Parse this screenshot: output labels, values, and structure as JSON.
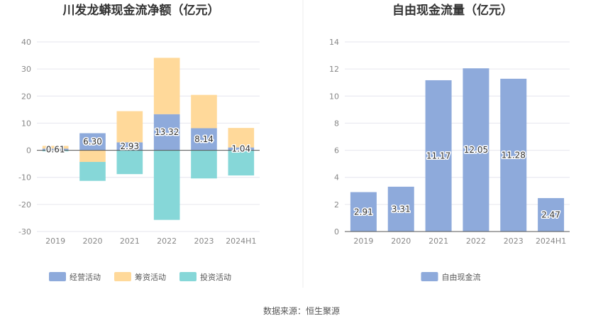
{
  "chart_data": [
    {
      "type": "bar",
      "stacked": true,
      "title": "川发龙蟒现金流净额（亿元）",
      "categories": [
        "2019",
        "2020",
        "2021",
        "2022",
        "2023",
        "2024H1"
      ],
      "ylim": [
        -30,
        40
      ],
      "yticks": [
        "40",
        "30",
        "20",
        "10",
        "0",
        "-10",
        "-20",
        "-30"
      ],
      "grid": true,
      "legend_position": "bottom",
      "series": [
        {
          "name": "经营活动",
          "color": "#8eaadb",
          "values": [
            0.61,
            6.3,
            2.93,
            13.32,
            8.14,
            1.04
          ],
          "labels": [
            "0.61",
            "6.30",
            "2.93",
            "13.32",
            "8.14",
            "1.04"
          ]
        },
        {
          "name": "筹资活动",
          "color": "#ffd99a",
          "values": [
            1.0,
            -4.3,
            11.5,
            20.8,
            12.3,
            7.2
          ]
        },
        {
          "name": "投资活动",
          "color": "#86d7d8",
          "values": [
            -0.4,
            -7.0,
            -8.8,
            -25.7,
            -10.4,
            -9.3
          ]
        }
      ]
    },
    {
      "type": "bar",
      "title": "自由现金流量（亿元）",
      "categories": [
        "2019",
        "2020",
        "2021",
        "2022",
        "2023",
        "2024H1"
      ],
      "ylim": [
        0,
        14
      ],
      "yticks": [
        "14",
        "12",
        "10",
        "8",
        "6",
        "4",
        "2",
        "0"
      ],
      "grid": true,
      "legend_position": "bottom",
      "series": [
        {
          "name": "自由现金流",
          "color": "#8eaadb",
          "values": [
            2.91,
            3.31,
            11.17,
            12.05,
            11.28,
            2.47
          ],
          "labels": [
            "2.91",
            "3.31",
            "11.17",
            "12.05",
            "11.28",
            "2.47"
          ]
        }
      ]
    }
  ],
  "footer": {
    "source": "数据来源：恒生聚源"
  },
  "colors": {
    "grid": "#e6e6ee",
    "axis": "#555555",
    "divider": "#eeeeee"
  }
}
